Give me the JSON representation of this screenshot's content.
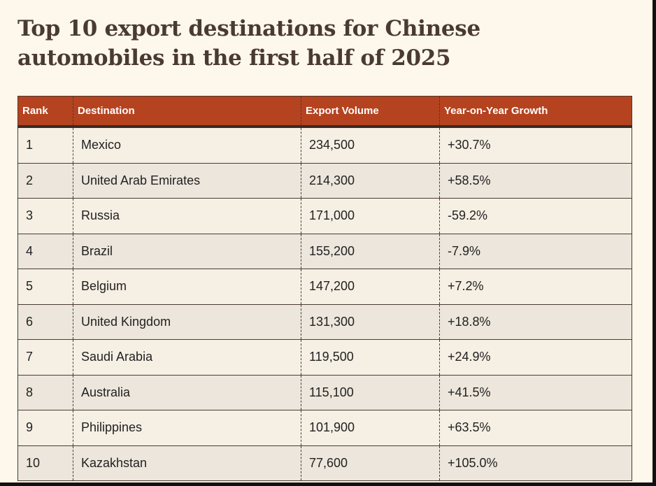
{
  "title": "Top 10 export destinations for Chinese automobiles in the first half of 2025",
  "columns": [
    "Rank",
    "Destination",
    "Export Volume",
    "Year-on-Year Growth"
  ],
  "rows": [
    [
      "1",
      "Mexico",
      "234,500",
      "+30.7%"
    ],
    [
      "2",
      "United Arab Emirates",
      "214,300",
      "+58.5%"
    ],
    [
      "3",
      "Russia",
      "171,000",
      "-59.2%"
    ],
    [
      "4",
      "Brazil",
      "155,200",
      "-7.9%"
    ],
    [
      "5",
      "Belgium",
      "147,200",
      "+7.2%"
    ],
    [
      "6",
      "United Kingdom",
      "131,300",
      "+18.8%"
    ],
    [
      "7",
      "Saudi Arabia",
      "119,500",
      "+24.9%"
    ],
    [
      "8",
      "Australia",
      "115,100",
      "+41.5%"
    ],
    [
      "9",
      "Philippines",
      "101,900",
      "+63.5%"
    ],
    [
      "10",
      "Kazakhstan",
      "77,600",
      "+105.0%"
    ]
  ],
  "colors": {
    "header": "#b5431f",
    "background": "#fdf7ec"
  }
}
